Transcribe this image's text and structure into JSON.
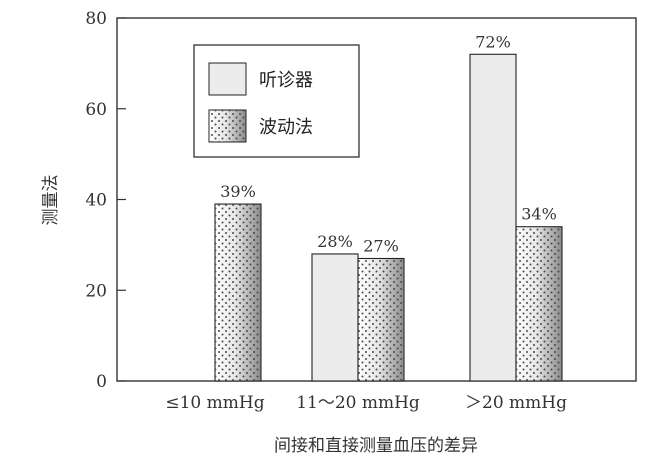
{
  "chart_data": {
    "type": "bar",
    "categories": [
      "≤10 mmHg",
      "11～20 mmHg",
      "＞20 mmHg"
    ],
    "series": [
      {
        "name": "听诊器",
        "values": [
          null,
          28,
          72
        ],
        "labels": [
          "",
          "28%",
          "72%"
        ],
        "style": "plain"
      },
      {
        "name": "波动法",
        "values": [
          39,
          27,
          34
        ],
        "labels": [
          "39%",
          "27%",
          "34%"
        ],
        "style": "dotted-gradient"
      }
    ],
    "xlabel": "间接和直接测量血压的差异",
    "ylabel": "测量法",
    "ylim": [
      0,
      80
    ],
    "yticks": [
      0,
      20,
      40,
      60,
      80
    ],
    "legend_position": "top-left",
    "grid": false,
    "colors": {
      "plain_fill": "#ececec",
      "edge": "#222222",
      "dot": "#5a5a5a",
      "gradient_light": "#ffffff",
      "gradient_dark": "#8a8a8a"
    }
  }
}
